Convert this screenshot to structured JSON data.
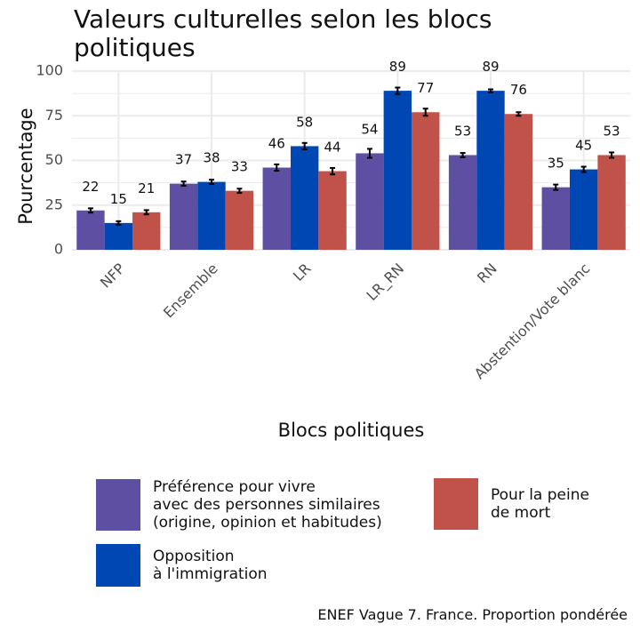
{
  "title_lines": [
    "Valeurs culturelles selon les blocs",
    "politiques"
  ],
  "caption": "ENEF Vague 7. France. Proportion pondérée",
  "colors": {
    "grid": "#ebebeb",
    "errorbar": "#000000"
  },
  "legend": [
    {
      "series": 0,
      "lines": [
        "Préférence pour vivre",
        "avec des personnes similaires",
        "(origine, opinion et habitudes)"
      ]
    },
    {
      "series": 1,
      "lines": [
        "Opposition",
        "à l'immigration"
      ]
    },
    {
      "series": 2,
      "lines": [
        "Pour la peine",
        "de mort"
      ]
    }
  ],
  "chart_data": {
    "type": "bar",
    "title": "Valeurs culturelles selon les blocs politiques",
    "xlabel": "Blocs politiques",
    "ylabel": "Pourcentage",
    "ylim": [
      0,
      100
    ],
    "yticks": [
      0,
      25,
      50,
      75,
      100
    ],
    "grid": true,
    "legend_position": "bottom",
    "categories": [
      "NFP",
      "Ensemble",
      "LR",
      "LR_RN",
      "RN",
      "Abstention/Vote blanc"
    ],
    "series": [
      {
        "name": "Préférence pour vivre avec des personnes similaires (origine, opinion et habitudes)",
        "color": "#5e4fa2",
        "values": [
          22,
          37,
          46,
          54,
          53,
          35
        ],
        "error": [
          1.2,
          1.2,
          1.8,
          2.5,
          1.2,
          1.5
        ]
      },
      {
        "name": "Opposition à l'immigration",
        "color": "#0047b3",
        "values": [
          15,
          38,
          58,
          89,
          89,
          45
        ],
        "error": [
          1.0,
          1.2,
          1.8,
          1.8,
          0.8,
          1.5
        ]
      },
      {
        "name": "Pour la peine de mort",
        "color": "#c1524a",
        "values": [
          21,
          33,
          44,
          77,
          76,
          53
        ],
        "error": [
          1.2,
          1.2,
          1.8,
          2.0,
          1.0,
          1.5
        ]
      }
    ]
  }
}
